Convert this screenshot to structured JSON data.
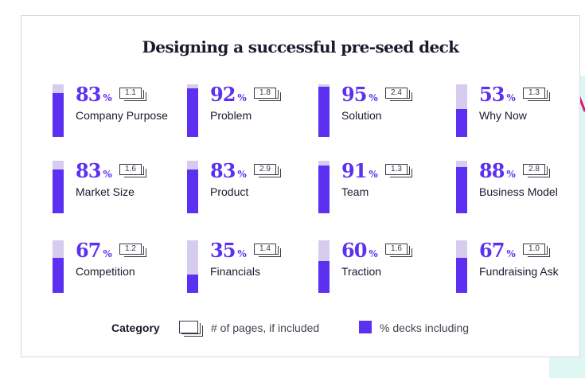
{
  "title": "Designing a successful pre-seed deck",
  "chart_data": {
    "type": "bar",
    "title": "Designing a successful pre-seed deck",
    "categories": [
      "Company Purpose",
      "Problem",
      "Solution",
      "Why Now",
      "Market Size",
      "Product",
      "Team",
      "Business Model",
      "Competition",
      "Financials",
      "Traction",
      "Fundraising Ask"
    ],
    "series": [
      {
        "name": "% decks including",
        "values": [
          83,
          92,
          95,
          53,
          83,
          83,
          91,
          88,
          67,
          35,
          60,
          67
        ]
      },
      {
        "name": "# of pages, if included",
        "values": [
          "1.1",
          "1.8",
          "2.4",
          "1.3",
          "1.6",
          "2.9",
          "1.3",
          "2.8",
          "1.2",
          "1.4",
          "1.6",
          "1.0"
        ]
      }
    ],
    "ylim": [
      0,
      100
    ],
    "percent_symbol": "%",
    "legend": {
      "title": "Category",
      "pages_label": "# of pages, if included",
      "percent_label": "% decks including"
    }
  },
  "colors": {
    "accent": "#5b30f0",
    "track": "#d6ccef",
    "text": "#1a1a2e",
    "deco_teal": "#dff6f3",
    "deco_line": "#d9157f"
  }
}
